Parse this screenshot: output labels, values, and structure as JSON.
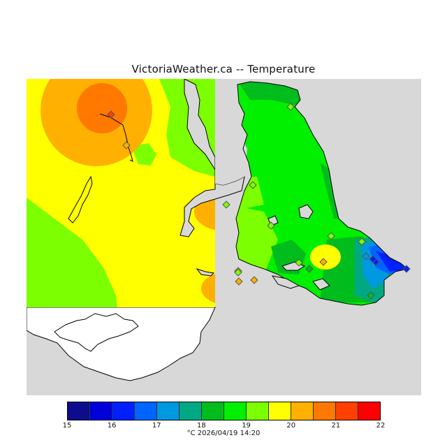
{
  "title": "VictoriaWeather.ca -- Temperature",
  "legend": {
    "ticks": [
      "15",
      "16",
      "17",
      "18",
      "19",
      "20",
      "21",
      "22"
    ],
    "colors": [
      "#0c0c8c",
      "#0000d8",
      "#0020ff",
      "#0064ff",
      "#0098e0",
      "#00a884",
      "#00bc1c",
      "#00f000",
      "#7cff00",
      "#ffff00",
      "#ffb000",
      "#ff7800",
      "#ff4000",
      "#ff0000"
    ]
  },
  "caption": {
    "unit": "°C",
    "timestamp": "2026/04/19 14:20"
  },
  "stations": [
    {
      "name": "",
      "temp_c": 21
    },
    {
      "name": "",
      "temp_c": 20
    },
    {
      "name": "",
      "temp_c": 19
    },
    {
      "name": "",
      "temp_c": 20
    },
    {
      "name": "",
      "temp_c": 20
    },
    {
      "name": "",
      "temp_c": 20
    },
    {
      "name": "",
      "temp_c": 19
    },
    {
      "name": "",
      "temp_c": 19
    },
    {
      "name": "",
      "temp_c": 19
    },
    {
      "name": "",
      "temp_c": 19
    },
    {
      "name": "",
      "temp_c": 19
    },
    {
      "name": "",
      "temp_c": 20
    },
    {
      "name": "",
      "temp_c": 19
    },
    {
      "name": "",
      "temp_c": 18
    },
    {
      "name": "",
      "temp_c": 19
    },
    {
      "name": "",
      "temp_c": 17
    },
    {
      "name": "",
      "temp_c": 16
    },
    {
      "name": "",
      "temp_c": 16
    },
    {
      "name": "",
      "temp_c": 18
    },
    {
      "name": "",
      "temp_c": 16
    }
  ]
}
